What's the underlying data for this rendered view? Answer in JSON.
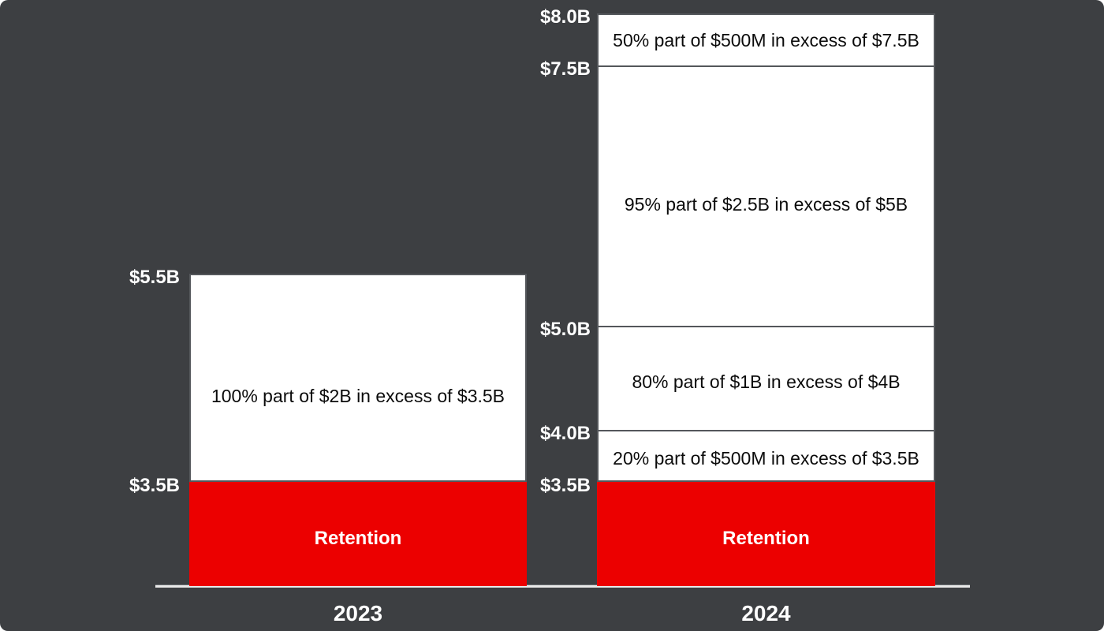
{
  "colors": {
    "background": "#3d3f42",
    "retention_red": "#ec0000",
    "band_white": "#ffffff",
    "band_border_gray": "#54575b",
    "axis_line": "#e9e9e9",
    "label_white": "#ffffff",
    "band_text_black": "#0b0b0b"
  },
  "chart_data": {
    "type": "bar",
    "stacked": true,
    "unit": "USD billions",
    "grid": false,
    "legend": false,
    "ylim": [
      2.5,
      8.0
    ],
    "categories": [
      "2023",
      "2024"
    ],
    "bars": [
      {
        "category": "2023",
        "total_label": "$5.5B",
        "ticks": [
          {
            "value": 5.5,
            "label": "$5.5B"
          },
          {
            "value": 3.5,
            "label": "$3.5B"
          }
        ],
        "segments": [
          {
            "from": 2.5,
            "to": 3.5,
            "fill": "red",
            "label": "Retention"
          },
          {
            "from": 3.5,
            "to": 5.5,
            "fill": "white",
            "label": "100% part of $2B in excess of $3.5B"
          }
        ]
      },
      {
        "category": "2024",
        "total_label": "$8.0B",
        "ticks": [
          {
            "value": 8.0,
            "label": "$8.0B"
          },
          {
            "value": 7.5,
            "label": "$7.5B"
          },
          {
            "value": 5.0,
            "label": "$5.0B"
          },
          {
            "value": 4.0,
            "label": "$4.0B"
          },
          {
            "value": 3.5,
            "label": "$3.5B"
          }
        ],
        "segments": [
          {
            "from": 2.5,
            "to": 3.5,
            "fill": "red",
            "label": "Retention"
          },
          {
            "from": 3.5,
            "to": 4.0,
            "fill": "white",
            "label": "20% part of $500M in excess of $3.5B"
          },
          {
            "from": 4.0,
            "to": 5.0,
            "fill": "white",
            "label": "80% part of $1B in excess of $4B"
          },
          {
            "from": 5.0,
            "to": 7.5,
            "fill": "white",
            "label": "95% part of $2.5B in excess of $5B"
          },
          {
            "from": 7.5,
            "to": 8.0,
            "fill": "white",
            "label": "50% part of $500M in excess of $7.5B"
          }
        ]
      }
    ]
  }
}
